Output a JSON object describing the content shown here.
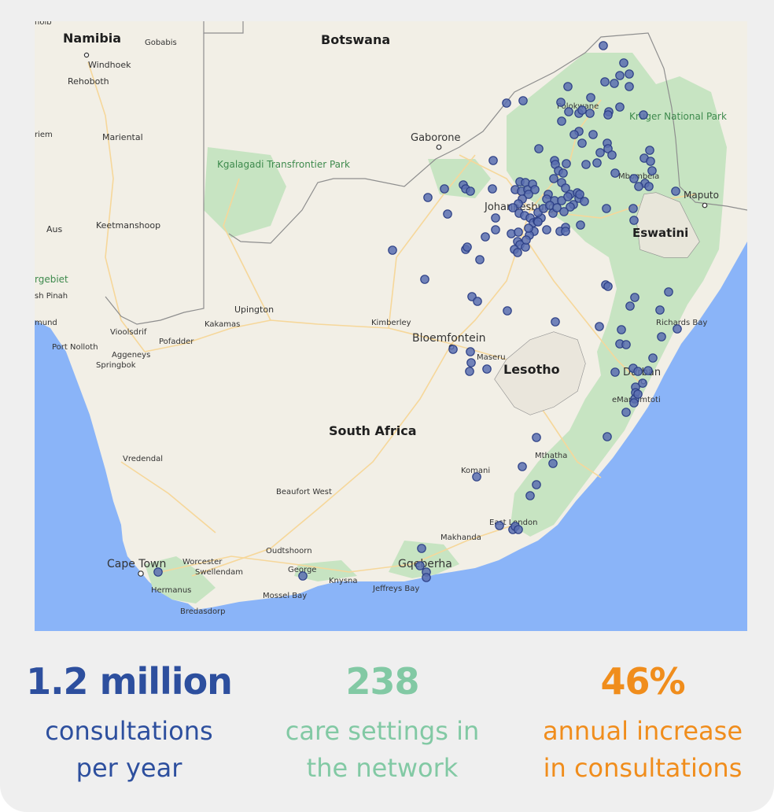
{
  "map": {
    "countries": [
      "Namibia",
      "Botswana",
      "South Africa",
      "Lesotho",
      "Eswatini"
    ],
    "cities": [
      "Gobabis",
      "Windhoek",
      "Rehoboth",
      "Mariental",
      "Keetmanshoop",
      "Aus",
      "Gaborone",
      "Polokwane",
      "Mbombela",
      "Maputo",
      "Johannesburg",
      "Upington",
      "Kakamas",
      "Kimberley",
      "Bloemfontein",
      "Maseru",
      "Vioolsdrif",
      "Pofadder",
      "Port Nolloth",
      "Aggeneys",
      "Springbok",
      "Richards Bay",
      "Durban",
      "eManzimtoti",
      "Vredendal",
      "Komani",
      "Mthatha",
      "Beaufort West",
      "East London",
      "Makhanda",
      "Oudtshoorn",
      "Cape Town",
      "Worcester",
      "Swellendam",
      "George",
      "Knysna",
      "Gqeberha",
      "Jeffreys Bay",
      "Hermanus",
      "Mossel Bay",
      "Bredasdorp"
    ],
    "parks": [
      "Kgalagadi Transfrontier Park",
      "Kruger National Park"
    ],
    "edge_fragments": [
      "hoib",
      "riem",
      "rgebiet",
      "sh Pinah",
      "mund"
    ],
    "colors": {
      "land": "#f2efe6",
      "ocean": "#8ab4f8",
      "park": "#c7e4c2",
      "roads": "#f6d79a",
      "dot_fill": "#5a6fb0",
      "dot_stroke": "#2c3f85"
    },
    "care_setting_marker_icon": "circle-dot"
  },
  "stats": [
    {
      "value": "1.2 million",
      "line1": "consultations",
      "line2": "per year",
      "color": "#2d4f9e"
    },
    {
      "value": "238",
      "line1": "care settings in",
      "line2": "the network",
      "color": "#82c9a4"
    },
    {
      "value": "46%",
      "line1": "annual increase",
      "line2": "in consultations",
      "color": "#f08d1c"
    }
  ]
}
